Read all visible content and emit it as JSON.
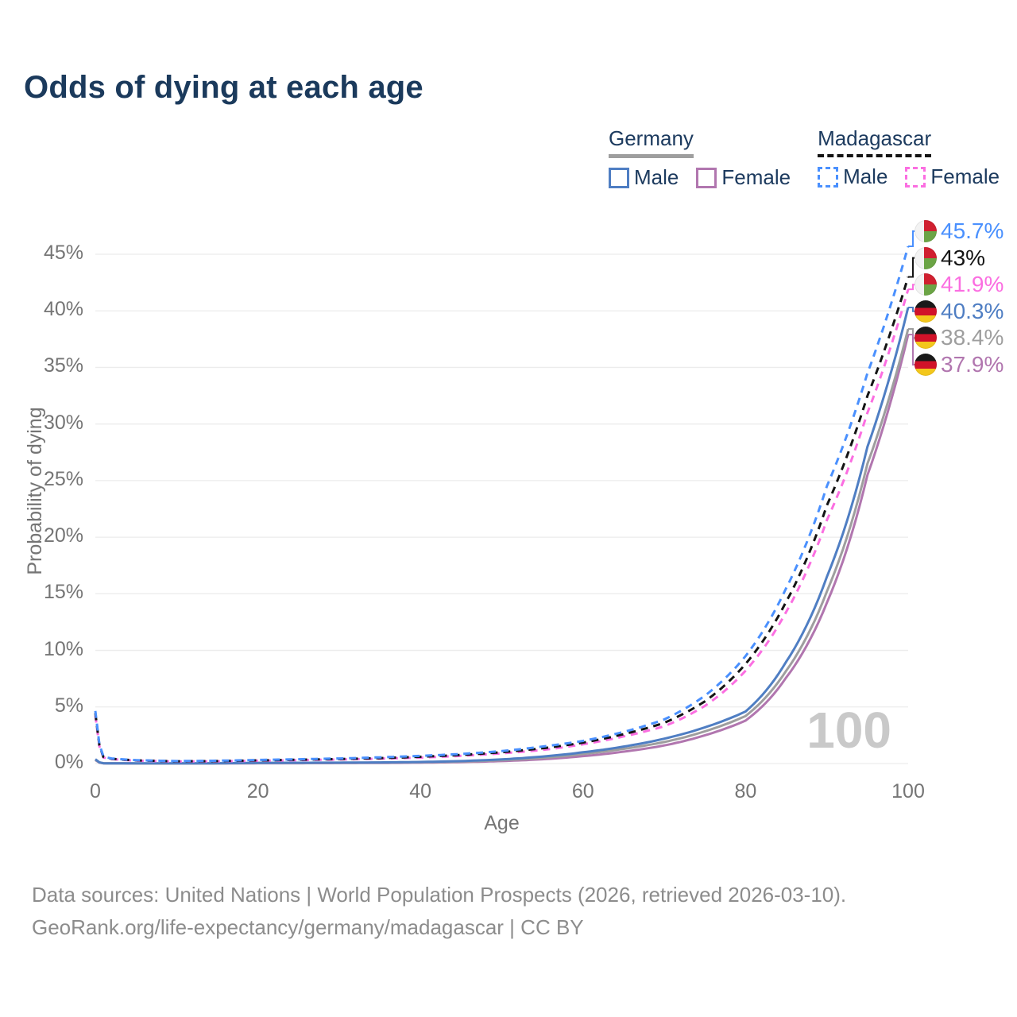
{
  "page": {
    "title": "Odds of dying at each age",
    "footer_line1": "Data sources: United Nations | World Population Prospects (2026, retrieved 2026-03-10).",
    "footer_line2": "GeoRank.org/life-expectancy/germany/madagascar | CC BY"
  },
  "colors": {
    "title": "#1b3a5c",
    "axis_text": "#757575",
    "grid": "#ececec",
    "footer": "#8c8c8c",
    "watermark": "#c9c9c9"
  },
  "legend": {
    "groups": [
      {
        "name": "Germany",
        "line_style": "solid",
        "line_color": "#9e9e9e",
        "items": [
          {
            "label": "Male",
            "color": "#4f7ec3",
            "style": "solid"
          },
          {
            "label": "Female",
            "color": "#b176af",
            "style": "solid"
          }
        ]
      },
      {
        "name": "Madagascar",
        "line_style": "dashed",
        "line_color": "#141414",
        "items": [
          {
            "label": "Male",
            "color": "#4a90fe",
            "style": "dashed"
          },
          {
            "label": "Female",
            "color": "#fb6ee1",
            "style": "dashed"
          }
        ]
      }
    ]
  },
  "chart_data": {
    "type": "line",
    "title": "Odds of dying at each age",
    "xlabel": "Age",
    "ylabel": "Probability of dying",
    "xlim": [
      0,
      100
    ],
    "ylim_pct": [
      0,
      47
    ],
    "x_ticks": [
      0,
      20,
      40,
      60,
      80,
      100
    ],
    "y_ticks_pct": [
      0,
      5,
      10,
      15,
      20,
      25,
      30,
      35,
      40,
      45
    ],
    "grid": true,
    "watermark": "100",
    "ages": [
      0,
      1,
      2,
      5,
      10,
      15,
      20,
      25,
      30,
      35,
      40,
      45,
      50,
      55,
      60,
      65,
      70,
      75,
      80,
      85,
      90,
      95,
      100
    ],
    "series": [
      {
        "name": "Madagascar Male",
        "country": "Madagascar",
        "sex": "Male",
        "flag": "mg",
        "color": "#4a90fe",
        "dash": true,
        "end_label": "45.7%",
        "values_pct": [
          4.65,
          0.62,
          0.45,
          0.3,
          0.22,
          0.25,
          0.32,
          0.38,
          0.45,
          0.55,
          0.68,
          0.85,
          1.1,
          1.5,
          2.0,
          2.8,
          3.9,
          6.0,
          9.5,
          15.5,
          24.5,
          34.5,
          45.7
        ]
      },
      {
        "name": "Madagascar",
        "country": "Madagascar",
        "sex": "All",
        "flag": "mg",
        "color": "#141414",
        "dash": true,
        "end_label": "43%",
        "values_pct": [
          4.45,
          0.58,
          0.42,
          0.28,
          0.2,
          0.22,
          0.28,
          0.34,
          0.4,
          0.48,
          0.6,
          0.76,
          1.0,
          1.35,
          1.85,
          2.6,
          3.6,
          5.5,
          8.8,
          14.3,
          22.8,
          32.5,
          43.0
        ]
      },
      {
        "name": "Madagascar Female",
        "country": "Madagascar",
        "sex": "Female",
        "flag": "mg",
        "color": "#fb6ee1",
        "dash": true,
        "end_label": "41.9%",
        "values_pct": [
          4.25,
          0.54,
          0.39,
          0.26,
          0.18,
          0.2,
          0.25,
          0.3,
          0.36,
          0.43,
          0.53,
          0.68,
          0.9,
          1.2,
          1.7,
          2.4,
          3.3,
          5.1,
          8.2,
          13.4,
          21.5,
          31.0,
          41.9
        ]
      },
      {
        "name": "Germany Male",
        "country": "Germany",
        "sex": "Male",
        "flag": "de",
        "color": "#4f7ec3",
        "dash": false,
        "end_label": "40.3%",
        "values_pct": [
          0.38,
          0.03,
          0.02,
          0.012,
          0.012,
          0.025,
          0.06,
          0.07,
          0.08,
          0.1,
          0.14,
          0.22,
          0.37,
          0.62,
          1.0,
          1.5,
          2.2,
          3.2,
          4.6,
          9.0,
          16.5,
          28.0,
          40.3
        ]
      },
      {
        "name": "Germany",
        "country": "Germany",
        "sex": "All",
        "flag": "de",
        "color": "#9e9e9e",
        "dash": false,
        "end_label": "38.4%",
        "values_pct": [
          0.34,
          0.027,
          0.017,
          0.01,
          0.01,
          0.02,
          0.045,
          0.055,
          0.065,
          0.085,
          0.115,
          0.18,
          0.3,
          0.5,
          0.85,
          1.3,
          1.9,
          2.85,
          4.2,
          8.2,
          15.2,
          26.5,
          38.4
        ]
      },
      {
        "name": "Germany Female",
        "country": "Germany",
        "sex": "Female",
        "flag": "de",
        "color": "#b176af",
        "dash": false,
        "end_label": "37.9%",
        "values_pct": [
          0.31,
          0.023,
          0.014,
          0.008,
          0.008,
          0.013,
          0.025,
          0.03,
          0.04,
          0.055,
          0.08,
          0.13,
          0.22,
          0.38,
          0.66,
          1.05,
          1.6,
          2.5,
          3.8,
          7.6,
          14.2,
          25.5,
          37.9
        ]
      }
    ]
  }
}
